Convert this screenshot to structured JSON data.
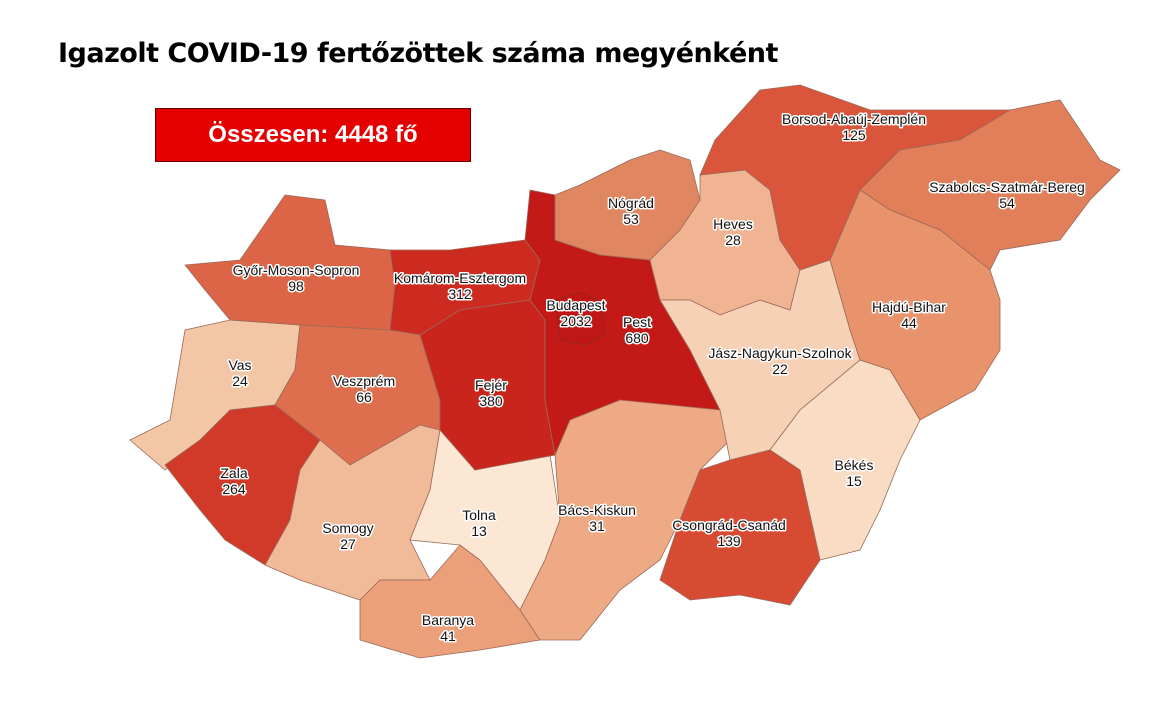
{
  "title": "Igazolt COVID-19 fertőzöttek száma megyénként",
  "total_label": "Összesen: 4448 fő",
  "counties": [
    {
      "id": "vas",
      "name": "Vas",
      "value": "24",
      "color": "#f3c6a6"
    },
    {
      "id": "gyor",
      "name": "Győr-Moson-Sopron",
      "value": "98",
      "color": "#dc6548"
    },
    {
      "id": "komarom",
      "name": "Komárom-Esztergom",
      "value": "312",
      "color": "#cd2a20"
    },
    {
      "id": "veszprem",
      "name": "Veszprém",
      "value": "66",
      "color": "#dd6f4e"
    },
    {
      "id": "zala",
      "name": "Zala",
      "value": "264",
      "color": "#d13a28"
    },
    {
      "id": "somogy",
      "name": "Somogy",
      "value": "27",
      "color": "#f1bb9a"
    },
    {
      "id": "baranya",
      "name": "Baranya",
      "value": "41",
      "color": "#eba07a"
    },
    {
      "id": "tolna",
      "name": "Tolna",
      "value": "13",
      "color": "#fce7d4"
    },
    {
      "id": "fejer",
      "name": "Fejér",
      "value": "380",
      "color": "#c9251c"
    },
    {
      "id": "pest",
      "name": "Pest",
      "value": "680",
      "color": "#c41a17"
    },
    {
      "id": "budapest",
      "name": "Budapest",
      "value": "2032",
      "color": "#c01616"
    },
    {
      "id": "bacs",
      "name": "Bács-Kiskun",
      "value": "31",
      "color": "#eeaa85"
    },
    {
      "id": "nograd",
      "name": "Nógrád",
      "value": "53",
      "color": "#e08660"
    },
    {
      "id": "heves",
      "name": "Heves",
      "value": "28",
      "color": "#f0b493"
    },
    {
      "id": "baz",
      "name": "Borsod-Abaúj-Zemplén",
      "value": "125",
      "color": "#d9553b"
    },
    {
      "id": "szabolcs",
      "name": "Szabolcs-Szatmár-Bereg",
      "value": "54",
      "color": "#e27f5b"
    },
    {
      "id": "hajdu",
      "name": "Hajdú-Bihar",
      "value": "44",
      "color": "#e8936c"
    },
    {
      "id": "jnsz",
      "name": "Jász-Nagykun-Szolnok",
      "value": "22",
      "color": "#f6d1b5"
    },
    {
      "id": "bekes",
      "name": "Békés",
      "value": "15",
      "color": "#f8dcc3"
    },
    {
      "id": "csongrad",
      "name": "Csongrád-Csanád",
      "value": "139",
      "color": "#d84b33"
    }
  ]
}
